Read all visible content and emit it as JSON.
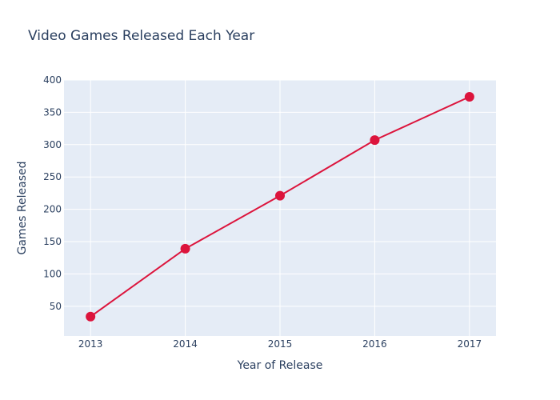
{
  "chart_data": {
    "type": "line",
    "title": "Video Games Released Each Year",
    "xlabel": "Year of Release",
    "ylabel": "Games Released",
    "x": [
      2013,
      2014,
      2015,
      2016,
      2017
    ],
    "y": [
      34,
      139,
      221,
      307,
      374
    ],
    "xlim": [
      2012.72,
      2017.28
    ],
    "ylim": [
      4,
      400
    ],
    "yticks": [
      50,
      100,
      150,
      200,
      250,
      300,
      350,
      400
    ],
    "xticks": [
      2013,
      2014,
      2015,
      2016,
      2017
    ],
    "grid": true,
    "line_color": "#dc143c",
    "marker_color": "#dc143c",
    "plot_background": "#e5ecf6"
  }
}
